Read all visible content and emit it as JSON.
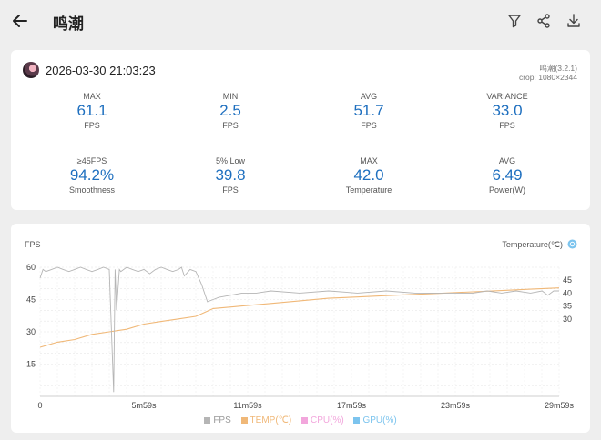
{
  "header": {
    "title": "鸣潮",
    "icons": [
      "back-arrow-icon",
      "filter-icon",
      "share-icon",
      "download-icon"
    ]
  },
  "session": {
    "datetime": "2026-03-30 21:03:23",
    "app_version": "鸣潮(3.2.1)",
    "crop": "crop: 1080×2344"
  },
  "stats": [
    {
      "label": "MAX",
      "value": "61.1",
      "unit": "FPS"
    },
    {
      "label": "MIN",
      "value": "2.5",
      "unit": "FPS"
    },
    {
      "label": "AVG",
      "value": "51.7",
      "unit": "FPS"
    },
    {
      "label": "VARIANCE",
      "value": "33.0",
      "unit": "FPS"
    },
    {
      "label": "≥45FPS",
      "value": "94.2%",
      "unit": "Smoothness"
    },
    {
      "label": "5% Low",
      "value": "39.8",
      "unit": "FPS"
    },
    {
      "label": "MAX",
      "value": "42.0",
      "unit": "Temperature"
    },
    {
      "label": "AVG",
      "value": "6.49",
      "unit": "Power(W)"
    }
  ],
  "colors": {
    "accent": "#1e6fbf",
    "fps_line": "#b5b5b5",
    "temp_line": "#f0b878",
    "cpu": "#f2a6dc",
    "gpu": "#7cc4ee"
  },
  "chart_data": {
    "type": "line",
    "left_axis_title": "FPS",
    "right_axis_title": "Temperature(℃)",
    "x_ticks": [
      "0",
      "5m59s",
      "11m59s",
      "17m59s",
      "23m59s",
      "29m59s"
    ],
    "x_range_seconds": [
      0,
      1799
    ],
    "y_left_ticks": [
      "60",
      "45",
      "30",
      "15"
    ],
    "y_left_range": [
      0,
      60
    ],
    "y_right_ticks": [
      "45",
      "40",
      "35",
      "30"
    ],
    "y_right_range": [
      0,
      50
    ],
    "grid": true,
    "legend": [
      {
        "name": "FPS",
        "color": "#b5b5b5"
      },
      {
        "name": "TEMP(℃)",
        "color": "#f0b878"
      },
      {
        "name": "CPU(%)",
        "color": "#f2a6dc"
      },
      {
        "name": "GPU(%)",
        "color": "#7cc4ee"
      }
    ],
    "series": [
      {
        "name": "FPS",
        "x": [
          0,
          10,
          20,
          40,
          60,
          80,
          100,
          120,
          140,
          160,
          180,
          200,
          220,
          240,
          255,
          260,
          265,
          275,
          280,
          290,
          300,
          320,
          340,
          360,
          380,
          400,
          420,
          440,
          460,
          480,
          490,
          500,
          520,
          540,
          560,
          580,
          600,
          620,
          660,
          700,
          750,
          800,
          900,
          1000,
          1100,
          1200,
          1300,
          1400,
          1500,
          1550,
          1600,
          1650,
          1700,
          1740,
          1760,
          1780,
          1799
        ],
        "values": [
          55,
          59,
          58,
          59,
          60,
          59,
          58,
          59,
          60,
          59,
          58,
          59,
          60,
          59,
          2,
          59,
          40,
          59,
          58,
          59,
          60,
          59,
          58,
          59,
          57,
          59,
          60,
          59,
          58,
          59,
          60,
          56,
          59,
          58,
          52,
          44,
          45,
          46,
          47,
          48,
          48,
          49,
          48,
          49,
          48,
          49,
          48,
          48,
          48,
          49,
          48,
          49,
          48,
          49,
          47,
          49,
          49
        ]
      },
      {
        "name": "TEMP(℃)",
        "x": [
          0,
          60,
          120,
          180,
          240,
          300,
          360,
          420,
          480,
          540,
          600,
          700,
          800,
          900,
          1000,
          1100,
          1200,
          1300,
          1400,
          1500,
          1600,
          1700,
          1799
        ],
        "values": [
          19,
          21,
          22,
          24,
          25,
          26,
          28,
          29,
          30,
          31,
          34,
          35,
          36,
          37,
          38,
          38.5,
          39,
          39.5,
          40,
          40.5,
          41,
          41.5,
          42
        ]
      }
    ]
  }
}
